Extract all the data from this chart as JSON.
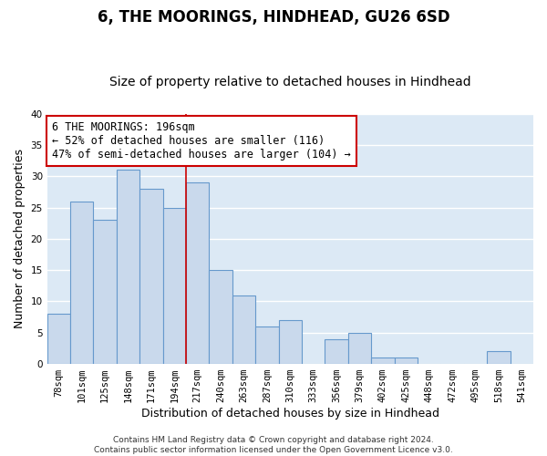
{
  "title": "6, THE MOORINGS, HINDHEAD, GU26 6SD",
  "subtitle": "Size of property relative to detached houses in Hindhead",
  "xlabel": "Distribution of detached houses by size in Hindhead",
  "ylabel": "Number of detached properties",
  "bin_labels": [
    "78sqm",
    "101sqm",
    "125sqm",
    "148sqm",
    "171sqm",
    "194sqm",
    "217sqm",
    "240sqm",
    "263sqm",
    "287sqm",
    "310sqm",
    "333sqm",
    "356sqm",
    "379sqm",
    "402sqm",
    "425sqm",
    "448sqm",
    "472sqm",
    "495sqm",
    "518sqm",
    "541sqm"
  ],
  "bar_values": [
    8,
    26,
    23,
    31,
    28,
    25,
    29,
    15,
    11,
    6,
    7,
    0,
    4,
    5,
    1,
    1,
    0,
    0,
    0,
    2,
    0
  ],
  "bar_color": "#c9d9ec",
  "bar_edge_color": "#6699cc",
  "bar_edge_width": 0.8,
  "vline_x_idx": 5,
  "vline_color": "#cc0000",
  "vline_linewidth": 1.2,
  "ylim": [
    0,
    40
  ],
  "yticks": [
    0,
    5,
    10,
    15,
    20,
    25,
    30,
    35,
    40
  ],
  "annotation_text": "6 THE MOORINGS: 196sqm\n← 52% of detached houses are smaller (116)\n47% of semi-detached houses are larger (104) →",
  "annotation_box_color": "#ffffff",
  "annotation_box_edge_color": "#cc0000",
  "footer_text": "Contains HM Land Registry data © Crown copyright and database right 2024.\nContains public sector information licensed under the Open Government Licence v3.0.",
  "background_color": "#ffffff",
  "plot_background_color": "#dce9f5",
  "grid_color": "#ffffff",
  "title_fontsize": 12,
  "subtitle_fontsize": 10,
  "axis_label_fontsize": 9,
  "tick_fontsize": 7.5,
  "annotation_fontsize": 8.5,
  "footer_fontsize": 6.5
}
